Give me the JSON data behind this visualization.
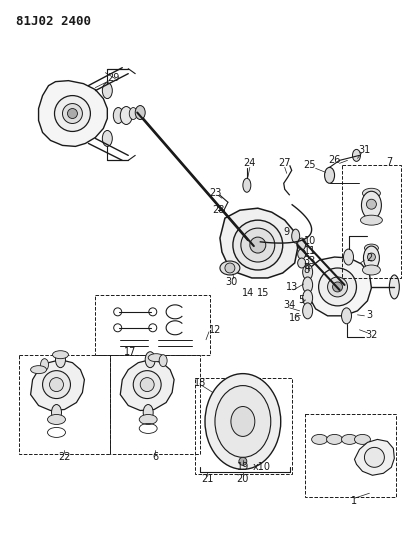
{
  "title": "81J02 2400",
  "bg_color": "#ffffff",
  "line_color": "#1a1a1a",
  "title_fontsize": 9,
  "label_fontsize": 7,
  "fig_width": 4.07,
  "fig_height": 5.33,
  "dpi": 100
}
